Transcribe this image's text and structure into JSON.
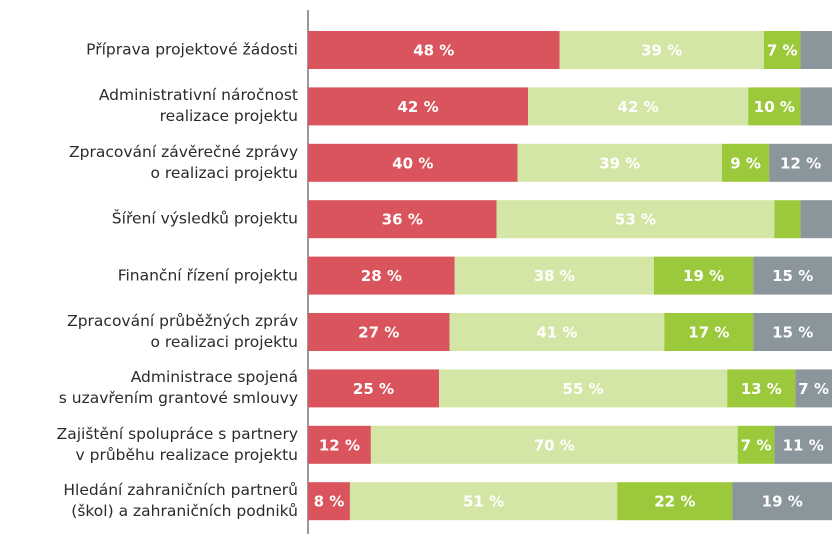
{
  "chart_data": {
    "type": "stacked-bar-horizontal",
    "xlim": [
      0,
      100
    ],
    "categories": [
      "Příprava projektové žádosti",
      "Administrativní náročnost\nrealizace projektu",
      "Zpracování závěrečné zprávy\no realizaci projektu",
      "Šíření výsledků projektu",
      "Finanční řízení projektu",
      "Zpracování průběžných zpráv\no realizaci projektu",
      "Administrace spojená\ns uzavřením grantové smlouvy",
      "Zajištění spolupráce s partnery\nv průběhu realizace projektu",
      "Hledání zahraničních partnerů\n(škol) a zahraničních podniků"
    ],
    "series": [
      {
        "color": "#d9545c",
        "values": [
          48,
          42,
          40,
          36,
          28,
          27,
          25,
          12,
          8
        ],
        "value_labels": [
          "48 %",
          "42 %",
          "40 %",
          "36 %",
          "28 %",
          "27 %",
          "25 %",
          "12 %",
          "8 %"
        ]
      },
      {
        "color": "#d4e6a5",
        "values": [
          39,
          42,
          39,
          53,
          38,
          41,
          55,
          70,
          51
        ],
        "value_labels": [
          "39 %",
          "42 %",
          "39 %",
          "53 %",
          "38 %",
          "41 %",
          "55 %",
          "70 %",
          "51 %"
        ]
      },
      {
        "color": "#9cc93c",
        "values": [
          7,
          10,
          9,
          5,
          19,
          17,
          13,
          7,
          22
        ],
        "value_labels": [
          "7 %",
          "10 %",
          "9 %",
          null,
          "19 %",
          "17 %",
          "13 %",
          "7 %",
          "22 %"
        ]
      },
      {
        "color": "#8a959c",
        "values": [
          6,
          6,
          12,
          6,
          15,
          15,
          7,
          11,
          19
        ],
        "value_labels": [
          null,
          null,
          "12 %",
          null,
          "15 %",
          "15 %",
          "7 %",
          "11 %",
          "19 %"
        ]
      }
    ]
  }
}
